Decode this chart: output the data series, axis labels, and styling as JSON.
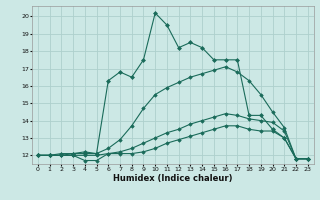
{
  "xlabel": "Humidex (Indice chaleur)",
  "bg_color": "#cce8e5",
  "grid_color": "#aed0cd",
  "line_color": "#1a6b5a",
  "xlim": [
    -0.5,
    23.5
  ],
  "ylim": [
    11.5,
    20.6
  ],
  "xticks": [
    0,
    1,
    2,
    3,
    4,
    5,
    6,
    7,
    8,
    9,
    10,
    11,
    12,
    13,
    14,
    15,
    16,
    17,
    18,
    19,
    20,
    21,
    22,
    23
  ],
  "yticks": [
    12,
    13,
    14,
    15,
    16,
    17,
    18,
    19,
    20
  ],
  "line1_x": [
    0,
    1,
    2,
    3,
    4,
    5,
    6,
    7,
    8,
    9,
    10,
    11,
    12,
    13,
    14,
    15,
    16,
    17,
    18,
    19,
    20,
    21,
    22,
    23
  ],
  "line1_y": [
    12.0,
    12.0,
    12.0,
    12.0,
    11.7,
    11.7,
    12.1,
    12.1,
    12.1,
    12.2,
    12.4,
    12.7,
    12.9,
    13.1,
    13.3,
    13.5,
    13.7,
    13.7,
    13.5,
    13.4,
    13.4,
    13.0,
    11.8,
    11.8
  ],
  "line2_x": [
    0,
    1,
    2,
    3,
    4,
    5,
    6,
    7,
    8,
    9,
    10,
    11,
    12,
    13,
    14,
    15,
    16,
    17,
    18,
    19,
    20,
    21,
    22,
    23
  ],
  "line2_y": [
    12.0,
    12.0,
    12.0,
    12.0,
    12.0,
    12.0,
    12.1,
    12.2,
    12.4,
    12.7,
    13.0,
    13.3,
    13.5,
    13.8,
    14.0,
    14.2,
    14.4,
    14.3,
    14.1,
    14.0,
    13.9,
    13.4,
    11.8,
    11.8
  ],
  "line3_x": [
    0,
    1,
    2,
    3,
    4,
    5,
    6,
    7,
    8,
    9,
    10,
    11,
    12,
    13,
    14,
    15,
    16,
    17,
    18,
    19,
    20,
    21,
    22,
    23
  ],
  "line3_y": [
    12.0,
    12.0,
    12.0,
    12.1,
    12.1,
    12.1,
    12.4,
    12.9,
    13.7,
    14.7,
    15.5,
    15.9,
    16.2,
    16.5,
    16.7,
    16.9,
    17.1,
    16.8,
    16.3,
    15.5,
    14.5,
    13.6,
    11.8,
    11.8
  ],
  "line4_x": [
    0,
    1,
    2,
    3,
    4,
    5,
    6,
    7,
    8,
    9,
    10,
    11,
    12,
    13,
    14,
    15,
    16,
    17,
    18,
    19,
    20,
    21,
    22,
    23
  ],
  "line4_y": [
    12.0,
    12.0,
    12.1,
    12.1,
    12.2,
    12.1,
    16.3,
    16.8,
    16.5,
    17.5,
    20.2,
    19.5,
    18.2,
    18.5,
    18.2,
    17.5,
    17.5,
    17.5,
    14.3,
    14.3,
    13.5,
    13.0,
    11.8,
    11.8
  ]
}
